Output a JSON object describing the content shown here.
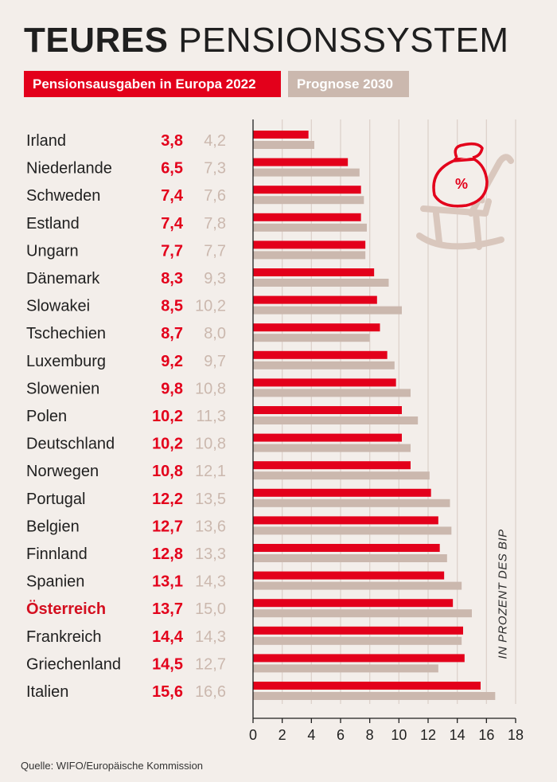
{
  "header": {
    "title_bold": "TEURES",
    "title_light": "PENSIONSSYSTEM",
    "legend_2022": "Pensionsausgaben in Europa 2022",
    "legend_2030": "Prognose 2030"
  },
  "unit_note": "IN PROZENT DES BIP",
  "source": "Quelle: WIFO/Europäische Kommission",
  "colors": {
    "series_2022": "#e3001b",
    "series_2030": "#cbb8ae",
    "highlight_label": "#d40f20",
    "background": "#f3eeea"
  },
  "decoration": {
    "icon": "rocking-chair-money-bag-icon",
    "icon_symbol": "%"
  },
  "highlight_country": "Österreich",
  "chart_data": {
    "type": "bar",
    "orientation": "horizontal",
    "categories": [
      "Irland",
      "Niederlande",
      "Schweden",
      "Estland",
      "Ungarn",
      "Dänemark",
      "Slowakei",
      "Tschechien",
      "Luxemburg",
      "Slowenien",
      "Polen",
      "Deutschland",
      "Norwegen",
      "Portugal",
      "Belgien",
      "Finnland",
      "Spanien",
      "Österreich",
      "Frankreich",
      "Griechenland",
      "Italien"
    ],
    "series": [
      {
        "name": "Pensionsausgaben in Europa 2022",
        "values": [
          3.8,
          6.5,
          7.4,
          7.4,
          7.7,
          8.3,
          8.5,
          8.7,
          9.2,
          9.8,
          10.2,
          10.2,
          10.8,
          12.2,
          12.7,
          12.8,
          13.1,
          13.7,
          14.4,
          14.5,
          15.6
        ],
        "labels": [
          "3,8",
          "6,5",
          "7,4",
          "7,4",
          "7,7",
          "8,3",
          "8,5",
          "8,7",
          "9,2",
          "9,8",
          "10,2",
          "10,2",
          "10,8",
          "12,2",
          "12,7",
          "12,8",
          "13,1",
          "13,7",
          "14,4",
          "14,5",
          "15,6"
        ]
      },
      {
        "name": "Prognose 2030",
        "values": [
          4.2,
          7.3,
          7.6,
          7.8,
          7.7,
          9.3,
          10.2,
          8.0,
          9.7,
          10.8,
          11.3,
          10.8,
          12.1,
          13.5,
          13.6,
          13.3,
          14.3,
          15.0,
          14.3,
          12.7,
          16.6
        ],
        "labels": [
          "4,2",
          "7,3",
          "7,6",
          "7,8",
          "7,7",
          "9,3",
          "10,2",
          "8,0",
          "9,7",
          "10,8",
          "11,3",
          "10,8",
          "12,1",
          "13,5",
          "13,6",
          "13,3",
          "14,3",
          "15,0",
          "14,3",
          "12,7",
          "16,6"
        ]
      }
    ],
    "xlim": [
      0,
      18
    ],
    "xticks": [
      "0",
      "2",
      "4",
      "6",
      "8",
      "10",
      "12",
      "14",
      "16",
      "18"
    ],
    "xlabel": "IN PROZENT DES BIP",
    "grid": true,
    "legend_placement": "top"
  }
}
